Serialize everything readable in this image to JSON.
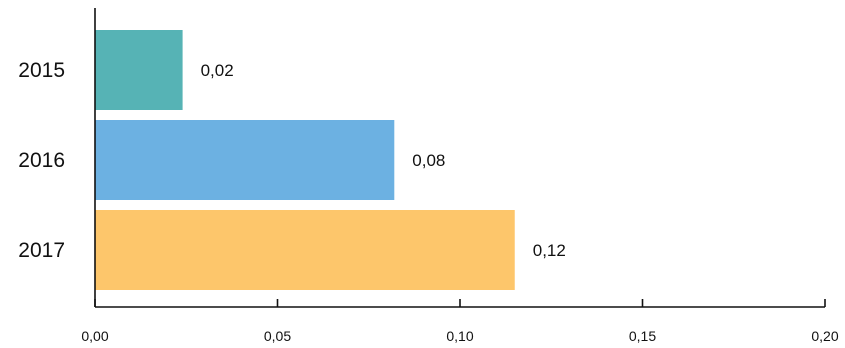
{
  "chart_data": {
    "type": "bar",
    "orientation": "horizontal",
    "categories": [
      "2015",
      "2016",
      "2017"
    ],
    "values": [
      0.024,
      0.082,
      0.115
    ],
    "data_labels": [
      "0,02",
      "0,08",
      "0,12"
    ],
    "colors": [
      "#56b3b5",
      "#6cb1e2",
      "#fdc66b"
    ],
    "xlim": [
      0,
      0.2
    ],
    "xticks": [
      0,
      0.05,
      0.1,
      0.15,
      0.2
    ],
    "xtick_labels": [
      "0,00",
      "0,05",
      "0,10",
      "0,15",
      "0,20"
    ],
    "title": "",
    "xlabel": "",
    "ylabel": "",
    "grid": false,
    "legend": "none"
  }
}
